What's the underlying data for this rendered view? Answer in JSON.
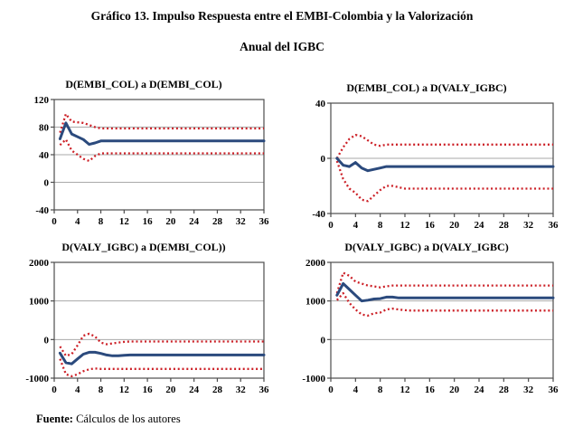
{
  "page": {
    "title_line1": "Gráfico 13. Impulso Respuesta entre el EMBI-Colombia y la Valorización",
    "title_line2": "Anual del IGBC",
    "footer_label": "Fuente:",
    "footer_text": " Cálculos de los autores"
  },
  "colors": {
    "response_line": "#2b4a7d",
    "confidence_band": "#cc2027",
    "grid": "#a9a9a9",
    "axis": "#4d4d4d",
    "background": "#ffffff"
  },
  "chart_data": [
    {
      "type": "line",
      "title": "D(EMBI_COL) a D(EMBI_COL)",
      "xlabel": "",
      "ylabel": "",
      "xlim": [
        0,
        36
      ],
      "ylim": [
        -40,
        120
      ],
      "xticks": [
        0,
        4,
        8,
        12,
        16,
        20,
        24,
        28,
        32,
        36
      ],
      "yticks": [
        120,
        80,
        40,
        0,
        -40
      ],
      "x_start": 1,
      "grid": "horizontal",
      "legend": "none",
      "series": [
        {
          "name": "impulso-respuesta",
          "style": "solid",
          "values": [
            63,
            86,
            70,
            66,
            62,
            55,
            57,
            60,
            60,
            60,
            60,
            60,
            60,
            60,
            60,
            60,
            60,
            60,
            60,
            60,
            60,
            60,
            60,
            60,
            60,
            60,
            60,
            60,
            60,
            60,
            60,
            60,
            60,
            60,
            60,
            60
          ]
        },
        {
          "name": "banda_superior",
          "style": "dotted",
          "values": [
            72,
            99,
            88,
            87,
            86,
            83,
            80,
            78,
            78,
            78,
            78,
            78,
            78,
            78,
            78,
            78,
            78,
            78,
            78,
            78,
            78,
            78,
            78,
            78,
            78,
            78,
            78,
            78,
            78,
            78,
            78,
            78,
            78,
            78,
            78,
            78
          ]
        },
        {
          "name": "banda_inferior",
          "style": "dotted",
          "values": [
            54,
            62,
            46,
            40,
            34,
            31,
            38,
            42,
            42,
            42,
            42,
            42,
            42,
            42,
            42,
            42,
            42,
            42,
            42,
            42,
            42,
            42,
            42,
            42,
            42,
            42,
            42,
            42,
            42,
            42,
            42,
            42,
            42,
            42,
            42,
            42
          ]
        }
      ]
    },
    {
      "type": "line",
      "title": "D(EMBI_COL) a D(VALY_IGBC)",
      "xlabel": "",
      "ylabel": "",
      "xlim": [
        0,
        36
      ],
      "ylim": [
        -40,
        40
      ],
      "xticks": [
        0,
        4,
        8,
        12,
        16,
        20,
        24,
        28,
        32,
        36
      ],
      "yticks": [
        40,
        0,
        -40
      ],
      "x_start": 1,
      "grid": "horizontal",
      "legend": "none",
      "series": [
        {
          "name": "impulso-respuesta",
          "style": "solid",
          "values": [
            0,
            -5,
            -6,
            -3,
            -7,
            -9,
            -8,
            -7,
            -6,
            -6,
            -6,
            -6,
            -6,
            -6,
            -6,
            -6,
            -6,
            -6,
            -6,
            -6,
            -6,
            -6,
            -6,
            -6,
            -6,
            -6,
            -6,
            -6,
            -6,
            -6,
            -6,
            -6,
            -6,
            -6,
            -6,
            -6
          ]
        },
        {
          "name": "banda_superior",
          "style": "dotted",
          "values": [
            0,
            8,
            14,
            17,
            16,
            13,
            10,
            9,
            10,
            10,
            10,
            10,
            10,
            10,
            10,
            10,
            10,
            10,
            10,
            10,
            10,
            10,
            10,
            10,
            10,
            10,
            10,
            10,
            10,
            10,
            10,
            10,
            10,
            10,
            10,
            10
          ]
        },
        {
          "name": "banda_inferior",
          "style": "dotted",
          "values": [
            -2,
            -15,
            -22,
            -25,
            -30,
            -31,
            -27,
            -23,
            -20,
            -20,
            -21,
            -22,
            -22,
            -22,
            -22,
            -22,
            -22,
            -22,
            -22,
            -22,
            -22,
            -22,
            -22,
            -22,
            -22,
            -22,
            -22,
            -22,
            -22,
            -22,
            -22,
            -22,
            -22,
            -22,
            -22,
            -22
          ]
        }
      ]
    },
    {
      "type": "line",
      "title": "D(VALY_IGBC) a D(EMBI_COL))",
      "xlabel": "",
      "ylabel": "",
      "xlim": [
        0,
        36
      ],
      "ylim": [
        -1000,
        2000
      ],
      "xticks": [
        0,
        4,
        8,
        12,
        16,
        20,
        24,
        28,
        32,
        36
      ],
      "yticks": [
        2000,
        1000,
        0,
        -1000
      ],
      "x_start": 1,
      "grid": "horizontal",
      "legend": "none",
      "series": [
        {
          "name": "impulso-respuesta",
          "style": "solid",
          "values": [
            -350,
            -600,
            -630,
            -500,
            -380,
            -330,
            -330,
            -360,
            -400,
            -420,
            -420,
            -410,
            -400,
            -400,
            -400,
            -400,
            -400,
            -400,
            -400,
            -400,
            -400,
            -400,
            -400,
            -400,
            -400,
            -400,
            -400,
            -400,
            -400,
            -400,
            -400,
            -400,
            -400,
            -400,
            -400,
            -400
          ]
        },
        {
          "name": "banda_superior",
          "style": "dotted",
          "values": [
            -180,
            -420,
            -380,
            -150,
            100,
            150,
            80,
            -80,
            -120,
            -100,
            -80,
            -60,
            -50,
            -50,
            -50,
            -50,
            -50,
            -50,
            -50,
            -50,
            -50,
            -50,
            -50,
            -50,
            -50,
            -50,
            -50,
            -50,
            -50,
            -50,
            -50,
            -50,
            -50,
            -50,
            -50,
            -50
          ]
        },
        {
          "name": "banda_inferior",
          "style": "dotted",
          "values": [
            -500,
            -900,
            -950,
            -900,
            -820,
            -770,
            -750,
            -760,
            -760,
            -760,
            -760,
            -760,
            -760,
            -760,
            -760,
            -760,
            -760,
            -760,
            -760,
            -760,
            -760,
            -760,
            -760,
            -760,
            -760,
            -760,
            -760,
            -760,
            -760,
            -760,
            -760,
            -760,
            -760,
            -760,
            -760,
            -760
          ]
        }
      ]
    },
    {
      "type": "line",
      "title": "D(VALY_IGBC) a D(VALY_IGBC)",
      "xlabel": "",
      "ylabel": "",
      "xlim": [
        0,
        36
      ],
      "ylim": [
        -1000,
        2000
      ],
      "xticks": [
        0,
        4,
        8,
        12,
        16,
        20,
        24,
        28,
        32,
        36
      ],
      "yticks": [
        2000,
        1000,
        0,
        -1000
      ],
      "x_start": 1,
      "grid": "horizontal",
      "legend": "none",
      "series": [
        {
          "name": "impulso-respuesta",
          "style": "solid",
          "values": [
            1150,
            1450,
            1300,
            1150,
            1000,
            1020,
            1050,
            1060,
            1100,
            1100,
            1080,
            1080,
            1080,
            1080,
            1080,
            1080,
            1080,
            1080,
            1080,
            1080,
            1080,
            1080,
            1080,
            1080,
            1080,
            1080,
            1080,
            1080,
            1080,
            1080,
            1080,
            1080,
            1080,
            1080,
            1080,
            1080
          ]
        },
        {
          "name": "banda_superior",
          "style": "dotted",
          "values": [
            1200,
            1730,
            1650,
            1500,
            1450,
            1400,
            1380,
            1350,
            1380,
            1400,
            1400,
            1400,
            1400,
            1400,
            1400,
            1400,
            1400,
            1400,
            1400,
            1400,
            1400,
            1400,
            1400,
            1400,
            1400,
            1400,
            1400,
            1400,
            1400,
            1400,
            1400,
            1400,
            1400,
            1400,
            1400,
            1400
          ]
        },
        {
          "name": "banda_inferior",
          "style": "dotted",
          "values": [
            1020,
            1200,
            950,
            780,
            650,
            620,
            680,
            700,
            780,
            800,
            780,
            760,
            750,
            750,
            750,
            750,
            750,
            750,
            750,
            750,
            750,
            750,
            750,
            750,
            750,
            750,
            750,
            750,
            750,
            750,
            750,
            750,
            750,
            750,
            750,
            750
          ]
        }
      ]
    }
  ]
}
